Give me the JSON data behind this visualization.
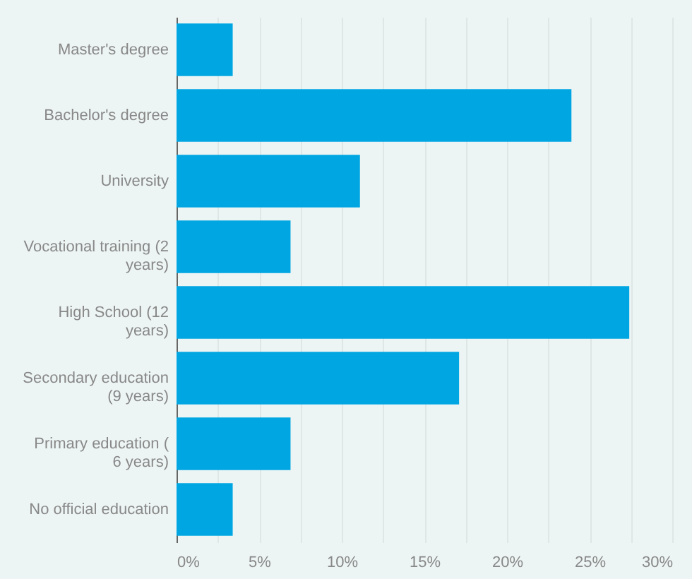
{
  "chart_data": {
    "type": "bar",
    "orientation": "horizontal",
    "categories": [
      "Master's degree",
      "Bachelor's degree",
      "University",
      "Vocational training (2 years)",
      "High School (12 years)",
      "Secondary education (9 years)",
      "Primary education ( 6 years)",
      "No official education"
    ],
    "values": [
      3.4,
      23.9,
      11.1,
      6.9,
      27.4,
      17.1,
      6.9,
      3.4
    ],
    "color": "#00a6e2",
    "xlim": [
      0,
      30
    ],
    "xticks": [
      {
        "value": 0,
        "label": "0%"
      },
      {
        "value": 2.5,
        "label": null
      },
      {
        "value": 5,
        "label": "5%"
      },
      {
        "value": 7.5,
        "label": null
      },
      {
        "value": 10,
        "label": "10%"
      },
      {
        "value": 12.5,
        "label": null
      },
      {
        "value": 15,
        "label": "15%"
      },
      {
        "value": 17.5,
        "label": null
      },
      {
        "value": 20,
        "label": "20%"
      },
      {
        "value": 22.5,
        "label": null
      },
      {
        "value": 25,
        "label": "25%"
      },
      {
        "value": 27.5,
        "label": null
      },
      {
        "value": 30,
        "label": "30%"
      }
    ],
    "grid": "x"
  }
}
